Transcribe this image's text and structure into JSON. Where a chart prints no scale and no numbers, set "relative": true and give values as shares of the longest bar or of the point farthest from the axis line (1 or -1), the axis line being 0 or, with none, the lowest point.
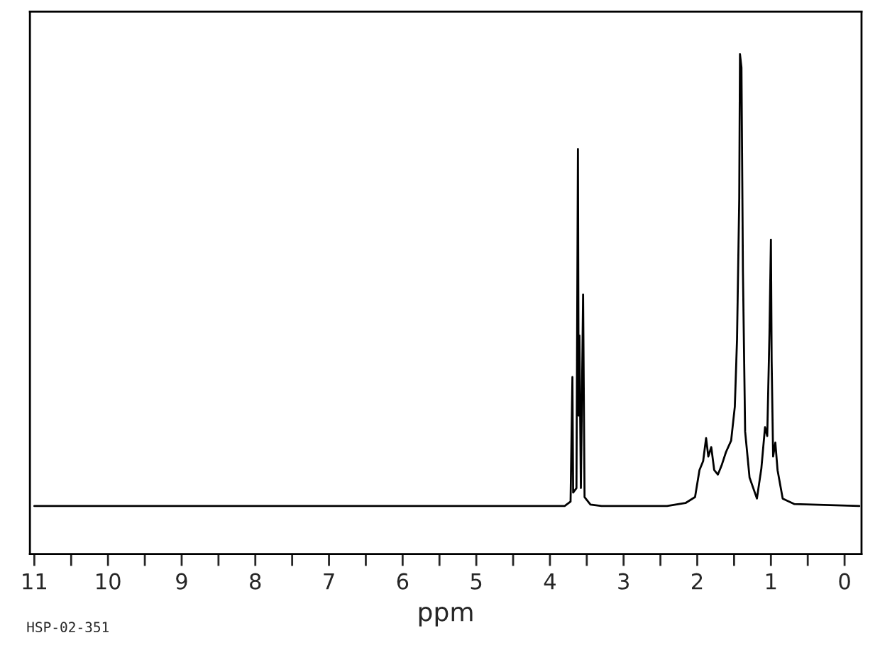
{
  "chart_data": {
    "type": "line",
    "relative": true,
    "xlabel": "ppm",
    "xlim": [
      11.06,
      -0.23
    ],
    "xticks": [
      11,
      {
        "value": 10.5,
        "label": null
      },
      10,
      {
        "value": 9.5,
        "label": null
      },
      9,
      {
        "value": 8.5,
        "label": null
      },
      8,
      {
        "value": 7.5,
        "label": null
      },
      7,
      {
        "value": 6.5,
        "label": null
      },
      6,
      {
        "value": 5.5,
        "label": null
      },
      5,
      {
        "value": 4.5,
        "label": null
      },
      4,
      {
        "value": 3.5,
        "label": null
      },
      3,
      {
        "value": 2.5,
        "label": null
      },
      2,
      {
        "value": 1.5,
        "label": null
      },
      1,
      {
        "value": 0.5,
        "label": null
      },
      0
    ],
    "tick_labels": "x",
    "grid": false,
    "legend": false,
    "marker": "none",
    "line_style": "solid",
    "annotations": [
      "HSP-02-351"
    ],
    "series": [
      {
        "color": "#000000",
        "x": [
          11.0,
          3.8,
          3.72,
          3.695,
          3.685,
          3.64,
          3.62,
          3.61,
          3.6,
          3.58,
          3.55,
          3.53,
          3.45,
          3.3,
          2.41,
          2.16,
          2.03,
          1.97,
          1.92,
          1.88,
          1.85,
          1.81,
          1.77,
          1.72,
          1.67,
          1.61,
          1.54,
          1.49,
          1.46,
          1.43,
          1.42,
          1.4,
          1.38,
          1.35,
          1.29,
          1.19,
          1.13,
          1.08,
          1.05,
          1.02,
          1.0,
          0.99,
          0.97,
          0.94,
          0.91,
          0.84,
          0.68,
          -0.2
        ],
        "values": [
          0.096,
          0.096,
          0.105,
          0.354,
          0.123,
          0.132,
          0.81,
          0.277,
          0.437,
          0.132,
          0.519,
          0.114,
          0.099,
          0.096,
          0.096,
          0.102,
          0.114,
          0.168,
          0.186,
          0.232,
          0.195,
          0.214,
          0.168,
          0.159,
          0.177,
          0.204,
          0.227,
          0.295,
          0.43,
          0.711,
          1.0,
          0.973,
          0.566,
          0.245,
          0.153,
          0.111,
          0.171,
          0.254,
          0.236,
          0.44,
          0.629,
          0.385,
          0.195,
          0.223,
          0.168,
          0.111,
          0.1,
          0.096
        ]
      }
    ]
  }
}
